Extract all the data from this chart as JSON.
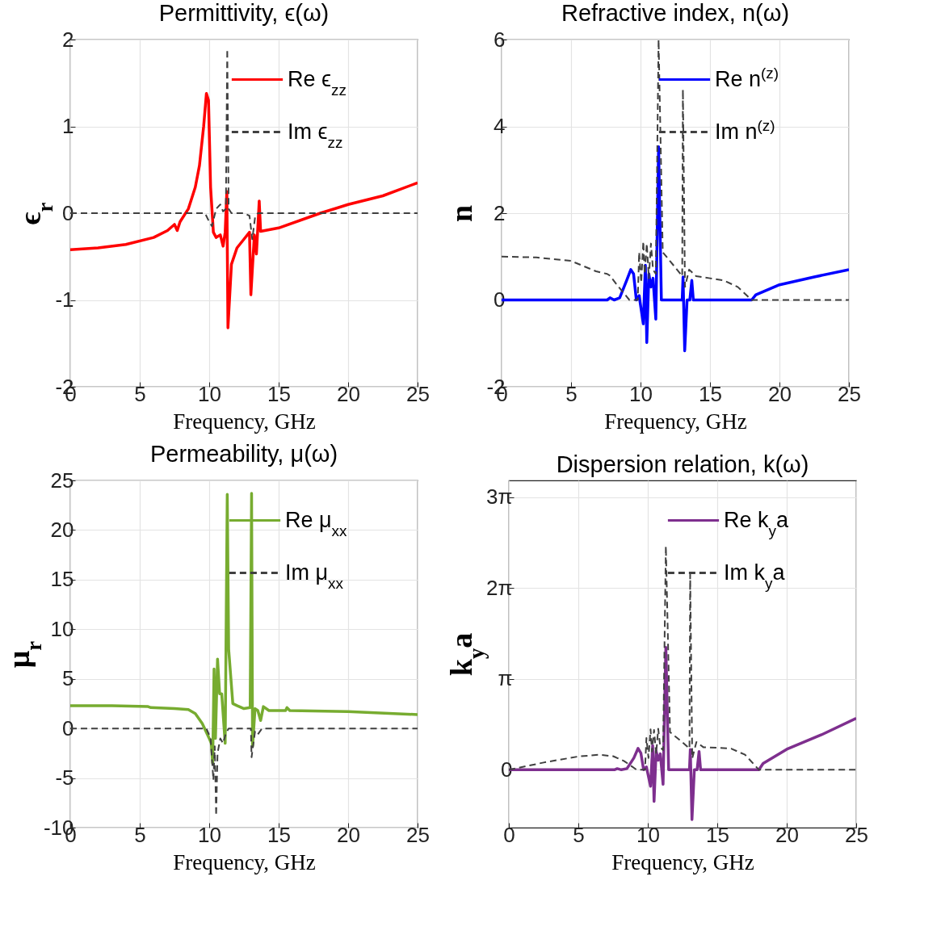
{
  "chart_data": [
    {
      "type": "line",
      "title": "Permittivity, ϵ(ω)",
      "xlabel": "Frequency, GHz",
      "ylabel": "ϵ$_{r}$",
      "xlim": [
        0,
        25
      ],
      "xticks": [
        0,
        5,
        10,
        15,
        20,
        25
      ],
      "ylim": [
        -2,
        2
      ],
      "yticks": [
        -2,
        -1,
        0,
        1,
        2
      ],
      "grid": true,
      "legend": "top right",
      "series": [
        {
          "name": "Re ϵ$_{zz}$",
          "color": "#ff0000",
          "line_style": "solid",
          "x": [
            0,
            2,
            4,
            6,
            7,
            7.5,
            7.7,
            7.9,
            8.5,
            9,
            9.3,
            9.6,
            9.8,
            9.95,
            10.1,
            10.3,
            10.5,
            10.8,
            11.0,
            11.15,
            11.27,
            11.35,
            11.6,
            12,
            12.5,
            12.9,
            13.0,
            13.25,
            13.4,
            13.6,
            13.7,
            15,
            18,
            20,
            22.5,
            25
          ],
          "values": [
            -0.42,
            -0.4,
            -0.36,
            -0.28,
            -0.2,
            -0.13,
            -0.2,
            -0.1,
            0.05,
            0.3,
            0.55,
            1.0,
            1.38,
            1.3,
            0.3,
            -0.22,
            -0.28,
            -0.25,
            -0.38,
            -0.22,
            0.25,
            -1.32,
            -0.59,
            -0.4,
            -0.3,
            -0.22,
            -0.94,
            -0.25,
            -0.47,
            0.14,
            -0.21,
            -0.17,
            0.0,
            0.1,
            0.2,
            0.35
          ]
        },
        {
          "name": "Im ϵ$_{zz}$",
          "color": "#404040",
          "line_style": "dashed",
          "x": [
            0,
            9.7,
            10.0,
            10.2,
            10.5,
            10.8,
            11.0,
            11.2,
            11.3,
            11.4,
            11.6,
            12.5,
            12.9,
            13.1,
            13.3,
            13.5,
            14,
            25
          ],
          "values": [
            0,
            0,
            -0.1,
            -0.15,
            0.05,
            0.1,
            0.02,
            0.05,
            1.89,
            0.05,
            0.0,
            0,
            -0.03,
            -0.3,
            -0.05,
            0,
            0,
            0
          ]
        }
      ]
    },
    {
      "type": "line",
      "title": "Refractive index, n(ω)",
      "xlabel": "Frequency, GHz",
      "ylabel": "n",
      "xlim": [
        0,
        25
      ],
      "xticks": [
        0,
        5,
        10,
        15,
        20,
        25
      ],
      "ylim": [
        -2,
        6
      ],
      "yticks": [
        -2,
        0,
        2,
        4,
        6
      ],
      "grid": true,
      "legend": "top right",
      "series": [
        {
          "name": "Re n$^{(z)}$",
          "color": "#0000ff",
          "line_style": "solid",
          "x": [
            0,
            7.6,
            7.8,
            8.1,
            8.5,
            9.0,
            9.3,
            9.5,
            9.7,
            9.9,
            10.2,
            10.35,
            10.45,
            10.6,
            10.75,
            10.9,
            11.1,
            11.3,
            11.5,
            13.0,
            13.06,
            13.18,
            13.35,
            13.55,
            13.69,
            13.8,
            18,
            18.3,
            20,
            22.5,
            25
          ],
          "values": [
            0,
            0,
            0.05,
            0,
            0.05,
            0.45,
            0.7,
            0.6,
            0,
            0.1,
            -0.55,
            0.8,
            -0.98,
            0.6,
            0.3,
            0.5,
            -0.44,
            3.53,
            0,
            0,
            0.53,
            -1.17,
            0,
            0,
            0.45,
            0,
            0,
            0.12,
            0.35,
            0.53,
            0.7
          ]
        },
        {
          "name": "Im n$^{(z)}$",
          "color": "#404040",
          "line_style": "dashed",
          "x": [
            0,
            2.5,
            5,
            6.8,
            7.6,
            7.8,
            8.3,
            9.2,
            9.8,
            9.9,
            10.05,
            10.2,
            10.3,
            10.45,
            10.6,
            10.75,
            10.9,
            11.1,
            11.3,
            11.6,
            12.5,
            13.0,
            13.05,
            13.2,
            13.5,
            14,
            15,
            16,
            17,
            18,
            25
          ],
          "values": [
            1.0,
            0.98,
            0.9,
            0.66,
            0.6,
            0.56,
            0.35,
            0,
            0,
            1.1,
            0.4,
            1.35,
            0.6,
            1.3,
            0.5,
            1.3,
            0.7,
            0.6,
            6,
            1.1,
            0.75,
            0.55,
            4.85,
            0.3,
            0.7,
            0.55,
            0.5,
            0.45,
            0.3,
            0,
            0
          ]
        }
      ]
    },
    {
      "type": "line",
      "title": "Permeability, μ(ω)",
      "xlabel": "Frequency, GHz",
      "ylabel": "μ$_{r}$",
      "xlim": [
        0,
        25
      ],
      "xticks": [
        0,
        5,
        10,
        15,
        20,
        25
      ],
      "ylim": [
        -10,
        25
      ],
      "yticks": [
        -10,
        -5,
        0,
        5,
        10,
        15,
        20,
        25
      ],
      "grid": true,
      "legend": "top right",
      "series": [
        {
          "name": "Re μ$_{xx}$",
          "color": "#77ac30",
          "line_style": "solid",
          "x": [
            0,
            3,
            5.6,
            5.8,
            7.5,
            8.5,
            9.0,
            9.5,
            10.0,
            10.15,
            10.25,
            10.35,
            10.45,
            10.6,
            10.75,
            10.9,
            11.15,
            11.3,
            11.4,
            11.7,
            12.0,
            12.5,
            12.95,
            13.05,
            13.12,
            13.3,
            13.5,
            13.7,
            13.9,
            14.3,
            15.5,
            15.6,
            15.8,
            20,
            25
          ],
          "values": [
            2.3,
            2.3,
            2.2,
            2.1,
            2.0,
            1.9,
            1.5,
            0.5,
            -1,
            -1.5,
            -3.5,
            6.0,
            -1,
            7.0,
            3.5,
            3.5,
            -1.5,
            23.6,
            8,
            2.5,
            2.3,
            2.0,
            2.1,
            23.7,
            -1.8,
            2.0,
            1.8,
            0.8,
            2.2,
            1.8,
            1.8,
            2.1,
            1.8,
            1.7,
            1.4
          ]
        },
        {
          "name": "Im μ$_{xx}$",
          "color": "#404040",
          "line_style": "dashed",
          "x": [
            0,
            9.8,
            10.1,
            10.3,
            10.4,
            10.5,
            10.6,
            10.8,
            11.0,
            11.2,
            11.4,
            13.0,
            13.05,
            13.3,
            13.5,
            13.8,
            25
          ],
          "values": [
            0,
            0,
            -1,
            -5.2,
            -1.8,
            -8.8,
            -2.5,
            -1,
            -1.5,
            -0.5,
            0,
            0,
            -2.9,
            -0.3,
            -0.6,
            0,
            0
          ]
        }
      ]
    },
    {
      "type": "line",
      "title": "Dispersion relation, k(ω)",
      "xlabel": "Frequency, GHz",
      "ylabel": "k$_{y}$a",
      "xlim": [
        0,
        25
      ],
      "xticks": [
        0,
        5,
        10,
        15,
        20,
        25
      ],
      "ylim": [
        -2,
        10
      ],
      "yticks": [
        0,
        {
          "value": 3.1416,
          "label": "π"
        },
        {
          "value": 6.2832,
          "label": "2π"
        },
        {
          "value": 9.4248,
          "label": "3π"
        }
      ],
      "grid": true,
      "legend": "top right",
      "series": [
        {
          "name": "Re k$_{y}$a",
          "color": "#7e2f8e",
          "line_style": "solid",
          "x": [
            0,
            7.6,
            7.8,
            8.1,
            8.5,
            9.0,
            9.3,
            9.5,
            9.7,
            9.9,
            10.2,
            10.35,
            10.45,
            10.6,
            10.75,
            10.9,
            11.1,
            11.3,
            11.5,
            13.0,
            13.06,
            13.18,
            13.35,
            13.55,
            13.69,
            13.8,
            18,
            18.3,
            20,
            22.5,
            25
          ],
          "values": [
            0,
            0,
            0.04,
            0,
            0.04,
            0.41,
            0.74,
            0.58,
            0,
            0.1,
            -0.57,
            0.84,
            -1.09,
            0.65,
            0.33,
            0.55,
            -0.5,
            4.23,
            0,
            0,
            0.7,
            -1.72,
            0,
            0,
            0.63,
            0,
            0,
            0.22,
            0.71,
            1.21,
            1.78
          ]
        },
        {
          "name": "Im k$_{y}$a",
          "color": "#404040",
          "line_style": "dashed",
          "x": [
            0,
            2.5,
            5,
            6.5,
            7.5,
            8.3,
            9.2,
            9.8,
            9.9,
            10.05,
            10.2,
            10.3,
            10.45,
            10.6,
            10.75,
            10.9,
            11.1,
            11.3,
            11.6,
            12.5,
            13.0,
            13.05,
            13.2,
            13.5,
            14,
            15,
            16,
            17,
            18,
            25
          ],
          "values": [
            0,
            0.25,
            0.46,
            0.52,
            0.47,
            0.3,
            0,
            0,
            1.1,
            0.41,
            1.4,
            0.63,
            1.38,
            0.54,
            1.42,
            0.78,
            0.68,
            7.73,
            1.3,
            0.95,
            0.73,
            6.75,
            0.4,
            0.96,
            0.78,
            0.76,
            0.73,
            0.52,
            0,
            0
          ]
        }
      ]
    }
  ]
}
